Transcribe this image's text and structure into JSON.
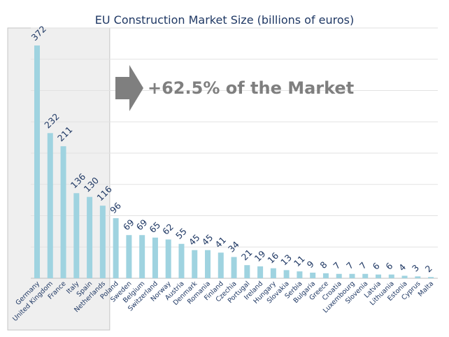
{
  "chart_data": {
    "type": "bar",
    "title": "EU Construction Market Size (billions of euros)",
    "xlabel": "",
    "ylabel": "",
    "ylim": [
      0,
      400
    ],
    "grid": true,
    "categories": [
      "Germany",
      "United Kingdom",
      "France",
      "Italy",
      "Spain",
      "Netherlands",
      "Poland",
      "Sweden",
      "Belgium",
      "Switzerland",
      "Norway",
      "Austria",
      "Denmark",
      "Romania",
      "Finland",
      "Czechia",
      "Portugal",
      "Ireland",
      "Hungary",
      "Slovakia",
      "Serbia",
      "Bulgaria",
      "Greece",
      "Croatia",
      "Luxembourg",
      "Slovenia",
      "Latvia",
      "Lithuania",
      "Estonia",
      "Cyprus",
      "Malta"
    ],
    "values": [
      372,
      232,
      211,
      136,
      130,
      116,
      96,
      69,
      69,
      65,
      62,
      55,
      45,
      45,
      41,
      34,
      21,
      19,
      16,
      13,
      11,
      9,
      8,
      7,
      7,
      7,
      6,
      6,
      4,
      3,
      2
    ],
    "highlight": {
      "from": "Germany",
      "to": "Netherlands"
    },
    "annotation": "+62.5% of the Market"
  },
  "colors": {
    "bar": "#9fd3e0",
    "highlight_fill": "#efefef",
    "highlight_border": "#c6c6c6",
    "arrow": "#7f7f7f",
    "label": "#1f3864",
    "annotation": "#7f7f7f"
  }
}
